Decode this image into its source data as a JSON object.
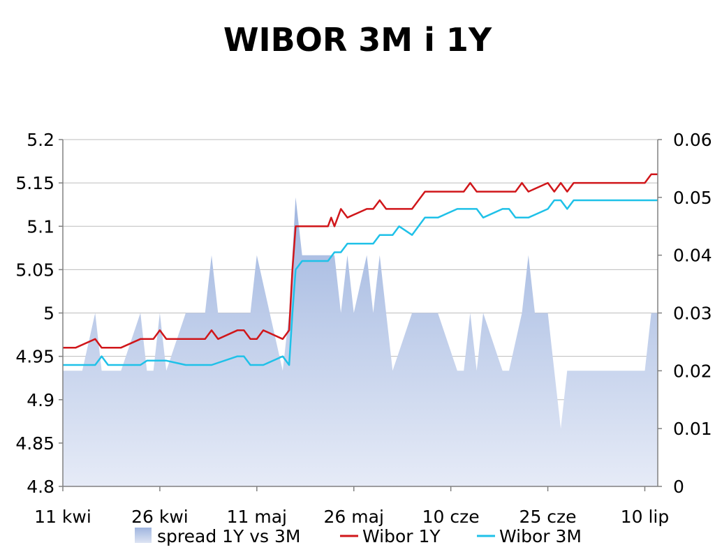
{
  "chart_data": {
    "type": "line",
    "title": "WIBOR 3M i 1Y",
    "xlabel": "",
    "ylabel": "",
    "x_tick_labels": [
      "11 kwi",
      "26 kwi",
      "11 maj",
      "26 maj",
      "10 cze",
      "25 cze",
      "10 lip"
    ],
    "x_range_days": [
      0,
      92
    ],
    "left_axis": {
      "min": 4.8,
      "max": 5.2,
      "ticks": [
        "4.8",
        "4.85",
        "4.9",
        "4.95",
        "5",
        "5.05",
        "5.1",
        "5.15",
        "5.2"
      ]
    },
    "right_axis": {
      "min": 0,
      "max": 0.06,
      "ticks": [
        "0",
        "0.01",
        "0.02",
        "0.03",
        "0.04",
        "0.05",
        "0.06"
      ]
    },
    "grid": "horizontal",
    "legend_position": "bottom",
    "series": [
      {
        "name": "spread 1Y vs 3M",
        "chart": "area",
        "axis": "right",
        "color": "#b4c7e7",
        "points": [
          [
            0,
            0.02
          ],
          [
            3,
            0.02
          ],
          [
            5,
            0.03
          ],
          [
            6,
            0.02
          ],
          [
            9,
            0.02
          ],
          [
            12,
            0.03
          ],
          [
            13,
            0.02
          ],
          [
            14,
            0.02
          ],
          [
            15,
            0.03
          ],
          [
            16,
            0.02
          ],
          [
            19,
            0.03
          ],
          [
            22,
            0.03
          ],
          [
            23,
            0.04
          ],
          [
            24,
            0.03
          ],
          [
            29,
            0.03
          ],
          [
            30,
            0.04
          ],
          [
            32,
            0.03
          ],
          [
            34,
            0.02
          ],
          [
            35,
            0.03
          ],
          [
            36,
            0.05
          ],
          [
            37,
            0.04
          ],
          [
            42,
            0.04
          ],
          [
            43,
            0.03
          ],
          [
            44,
            0.04
          ],
          [
            45,
            0.03
          ],
          [
            47,
            0.04
          ],
          [
            48,
            0.03
          ],
          [
            49,
            0.04
          ],
          [
            50,
            0.03
          ],
          [
            51,
            0.02
          ],
          [
            54,
            0.03
          ],
          [
            58,
            0.03
          ],
          [
            61,
            0.02
          ],
          [
            62,
            0.02
          ],
          [
            63,
            0.03
          ],
          [
            64,
            0.02
          ],
          [
            65,
            0.03
          ],
          [
            68,
            0.02
          ],
          [
            69,
            0.02
          ],
          [
            71,
            0.03
          ],
          [
            72,
            0.04
          ],
          [
            73,
            0.03
          ],
          [
            75,
            0.03
          ],
          [
            76,
            0.02
          ],
          [
            77,
            0.01
          ],
          [
            78,
            0.02
          ],
          [
            90,
            0.02
          ],
          [
            91,
            0.03
          ],
          [
            92,
            0.03
          ]
        ]
      },
      {
        "name": "Wibor 1Y",
        "chart": "line",
        "axis": "left",
        "color": "#d0161a",
        "points": [
          [
            0,
            4.96
          ],
          [
            2,
            4.96
          ],
          [
            5,
            4.97
          ],
          [
            6,
            4.96
          ],
          [
            9,
            4.96
          ],
          [
            12,
            4.97
          ],
          [
            14,
            4.97
          ],
          [
            15,
            4.98
          ],
          [
            16,
            4.97
          ],
          [
            22,
            4.97
          ],
          [
            23,
            4.98
          ],
          [
            24,
            4.97
          ],
          [
            27,
            4.98
          ],
          [
            28,
            4.98
          ],
          [
            29,
            4.97
          ],
          [
            30,
            4.97
          ],
          [
            31,
            4.98
          ],
          [
            34,
            4.97
          ],
          [
            35,
            4.98
          ],
          [
            35.5,
            5.05
          ],
          [
            36,
            5.1
          ],
          [
            40,
            5.1
          ],
          [
            41,
            5.1
          ],
          [
            41.5,
            5.11
          ],
          [
            42,
            5.1
          ],
          [
            43,
            5.12
          ],
          [
            44,
            5.11
          ],
          [
            47,
            5.12
          ],
          [
            48,
            5.12
          ],
          [
            49,
            5.13
          ],
          [
            50,
            5.12
          ],
          [
            54,
            5.12
          ],
          [
            56,
            5.14
          ],
          [
            62,
            5.14
          ],
          [
            63,
            5.15
          ],
          [
            64,
            5.14
          ],
          [
            70,
            5.14
          ],
          [
            71,
            5.15
          ],
          [
            72,
            5.14
          ],
          [
            75,
            5.15
          ],
          [
            76,
            5.14
          ],
          [
            77,
            5.15
          ],
          [
            78,
            5.14
          ],
          [
            79,
            5.15
          ],
          [
            90,
            5.15
          ],
          [
            91,
            5.16
          ],
          [
            92,
            5.16
          ]
        ]
      },
      {
        "name": "Wibor 3M",
        "chart": "line",
        "axis": "left",
        "color": "#1fc1e8",
        "points": [
          [
            0,
            4.94
          ],
          [
            5,
            4.94
          ],
          [
            6,
            4.95
          ],
          [
            7,
            4.94
          ],
          [
            12,
            4.94
          ],
          [
            13,
            4.945
          ],
          [
            16,
            4.945
          ],
          [
            19,
            4.94
          ],
          [
            23,
            4.94
          ],
          [
            27,
            4.95
          ],
          [
            28,
            4.95
          ],
          [
            29,
            4.94
          ],
          [
            31,
            4.94
          ],
          [
            34,
            4.95
          ],
          [
            35,
            4.94
          ],
          [
            35.5,
            5.0
          ],
          [
            36,
            5.05
          ],
          [
            37,
            5.06
          ],
          [
            41,
            5.06
          ],
          [
            42,
            5.07
          ],
          [
            43,
            5.07
          ],
          [
            44,
            5.08
          ],
          [
            48,
            5.08
          ],
          [
            49,
            5.09
          ],
          [
            51,
            5.09
          ],
          [
            52,
            5.1
          ],
          [
            54,
            5.09
          ],
          [
            56,
            5.11
          ],
          [
            58,
            5.11
          ],
          [
            61,
            5.12
          ],
          [
            64,
            5.12
          ],
          [
            65,
            5.11
          ],
          [
            68,
            5.12
          ],
          [
            69,
            5.12
          ],
          [
            70,
            5.11
          ],
          [
            72,
            5.11
          ],
          [
            75,
            5.12
          ],
          [
            76,
            5.13
          ],
          [
            77,
            5.13
          ],
          [
            78,
            5.12
          ],
          [
            79,
            5.13
          ],
          [
            92,
            5.13
          ]
        ]
      }
    ]
  }
}
